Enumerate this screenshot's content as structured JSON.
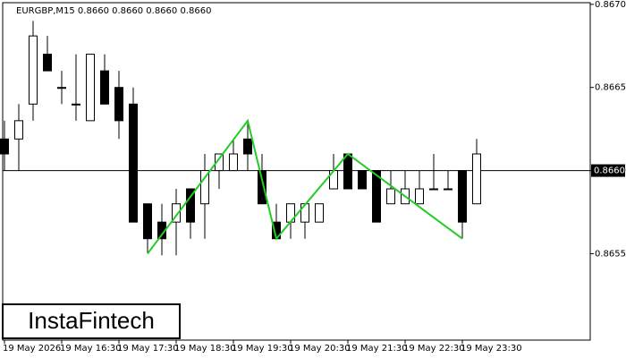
{
  "chart_data": {
    "type": "candlestick",
    "title": "EURGBP,M15  0.8660 0.8660 0.8660 0.8660",
    "logo": "InstaFintech",
    "categories": [
      "19 May 2026",
      null,
      null,
      null,
      "19 May 16:30",
      null,
      null,
      null,
      "19 May 17:30",
      null,
      null,
      null,
      "19 May 18:30",
      null,
      null,
      null,
      "19 May 19:30",
      null,
      null,
      null,
      "19 May 20:30",
      null,
      null,
      null,
      "19 May 21:30",
      null,
      null,
      null,
      "19 May 22:30",
      null,
      null,
      null,
      "19 May 23:30",
      null
    ],
    "open": [
      0.86619,
      0.86619,
      0.8664,
      0.8667,
      0.8665,
      0.8664,
      0.8663,
      0.8666,
      0.8665,
      0.8664,
      0.8658,
      0.86569,
      0.86569,
      0.86589,
      0.8658,
      0.866,
      0.866,
      0.86619,
      0.866,
      0.86569,
      0.86569,
      0.86569,
      0.86569,
      0.86589,
      0.8661,
      0.866,
      0.866,
      0.8658,
      0.8658,
      0.8658,
      0.86589,
      0.86589,
      0.866,
      0.8658
    ],
    "high": [
      0.8663,
      0.8664,
      0.8669,
      0.86681,
      0.8666,
      0.8667,
      0.8667,
      0.8667,
      0.8666,
      0.8665,
      0.8658,
      0.8658,
      0.86589,
      0.86589,
      0.8661,
      0.8661,
      0.86619,
      0.8663,
      0.8661,
      0.8658,
      0.8658,
      0.8658,
      0.8658,
      0.8661,
      0.8661,
      0.866,
      0.866,
      0.866,
      0.866,
      0.866,
      0.8661,
      0.866,
      0.866,
      0.86619
    ],
    "low": [
      0.866,
      0.866,
      0.8663,
      0.8666,
      0.8664,
      0.8663,
      0.8663,
      0.8664,
      0.86619,
      0.86569,
      0.8655,
      0.86549,
      0.86549,
      0.86559,
      0.86559,
      0.86589,
      0.866,
      0.866,
      0.8658,
      0.86559,
      0.86559,
      0.86559,
      0.86569,
      0.86589,
      0.86589,
      0.86589,
      0.86569,
      0.8658,
      0.8658,
      0.8658,
      0.86589,
      0.86589,
      0.86559,
      0.8658
    ],
    "close": [
      0.8661,
      0.8663,
      0.86681,
      0.8666,
      0.8665,
      0.8664,
      0.8667,
      0.8664,
      0.8663,
      0.86569,
      0.86559,
      0.86559,
      0.8658,
      0.86569,
      0.866,
      0.8661,
      0.8661,
      0.8661,
      0.8658,
      0.86559,
      0.8658,
      0.8658,
      0.8658,
      0.866,
      0.86589,
      0.86589,
      0.86569,
      0.86589,
      0.86589,
      0.86589,
      0.86589,
      0.86589,
      0.86569,
      0.8661
    ],
    "up_color": "#ffffff",
    "down_color": "#000000",
    "wick_color": "#000000",
    "pattern": {
      "color": "#22cc22",
      "x": [
        10,
        17,
        19,
        24,
        32
      ],
      "values": [
        0.8655,
        0.8663,
        0.86559,
        0.8661,
        0.86559
      ]
    },
    "last_price": {
      "value": 0.866,
      "label": "0.8660"
    },
    "ylim": [
      0.86498,
      0.86701
    ],
    "yticks": [
      {
        "value": 0.8655,
        "label": "0.8655"
      },
      {
        "value": 0.866,
        "label": "0.8660"
      },
      {
        "value": 0.8665,
        "label": "0.8665"
      },
      {
        "value": 0.867,
        "label": "0.8670"
      }
    ]
  }
}
